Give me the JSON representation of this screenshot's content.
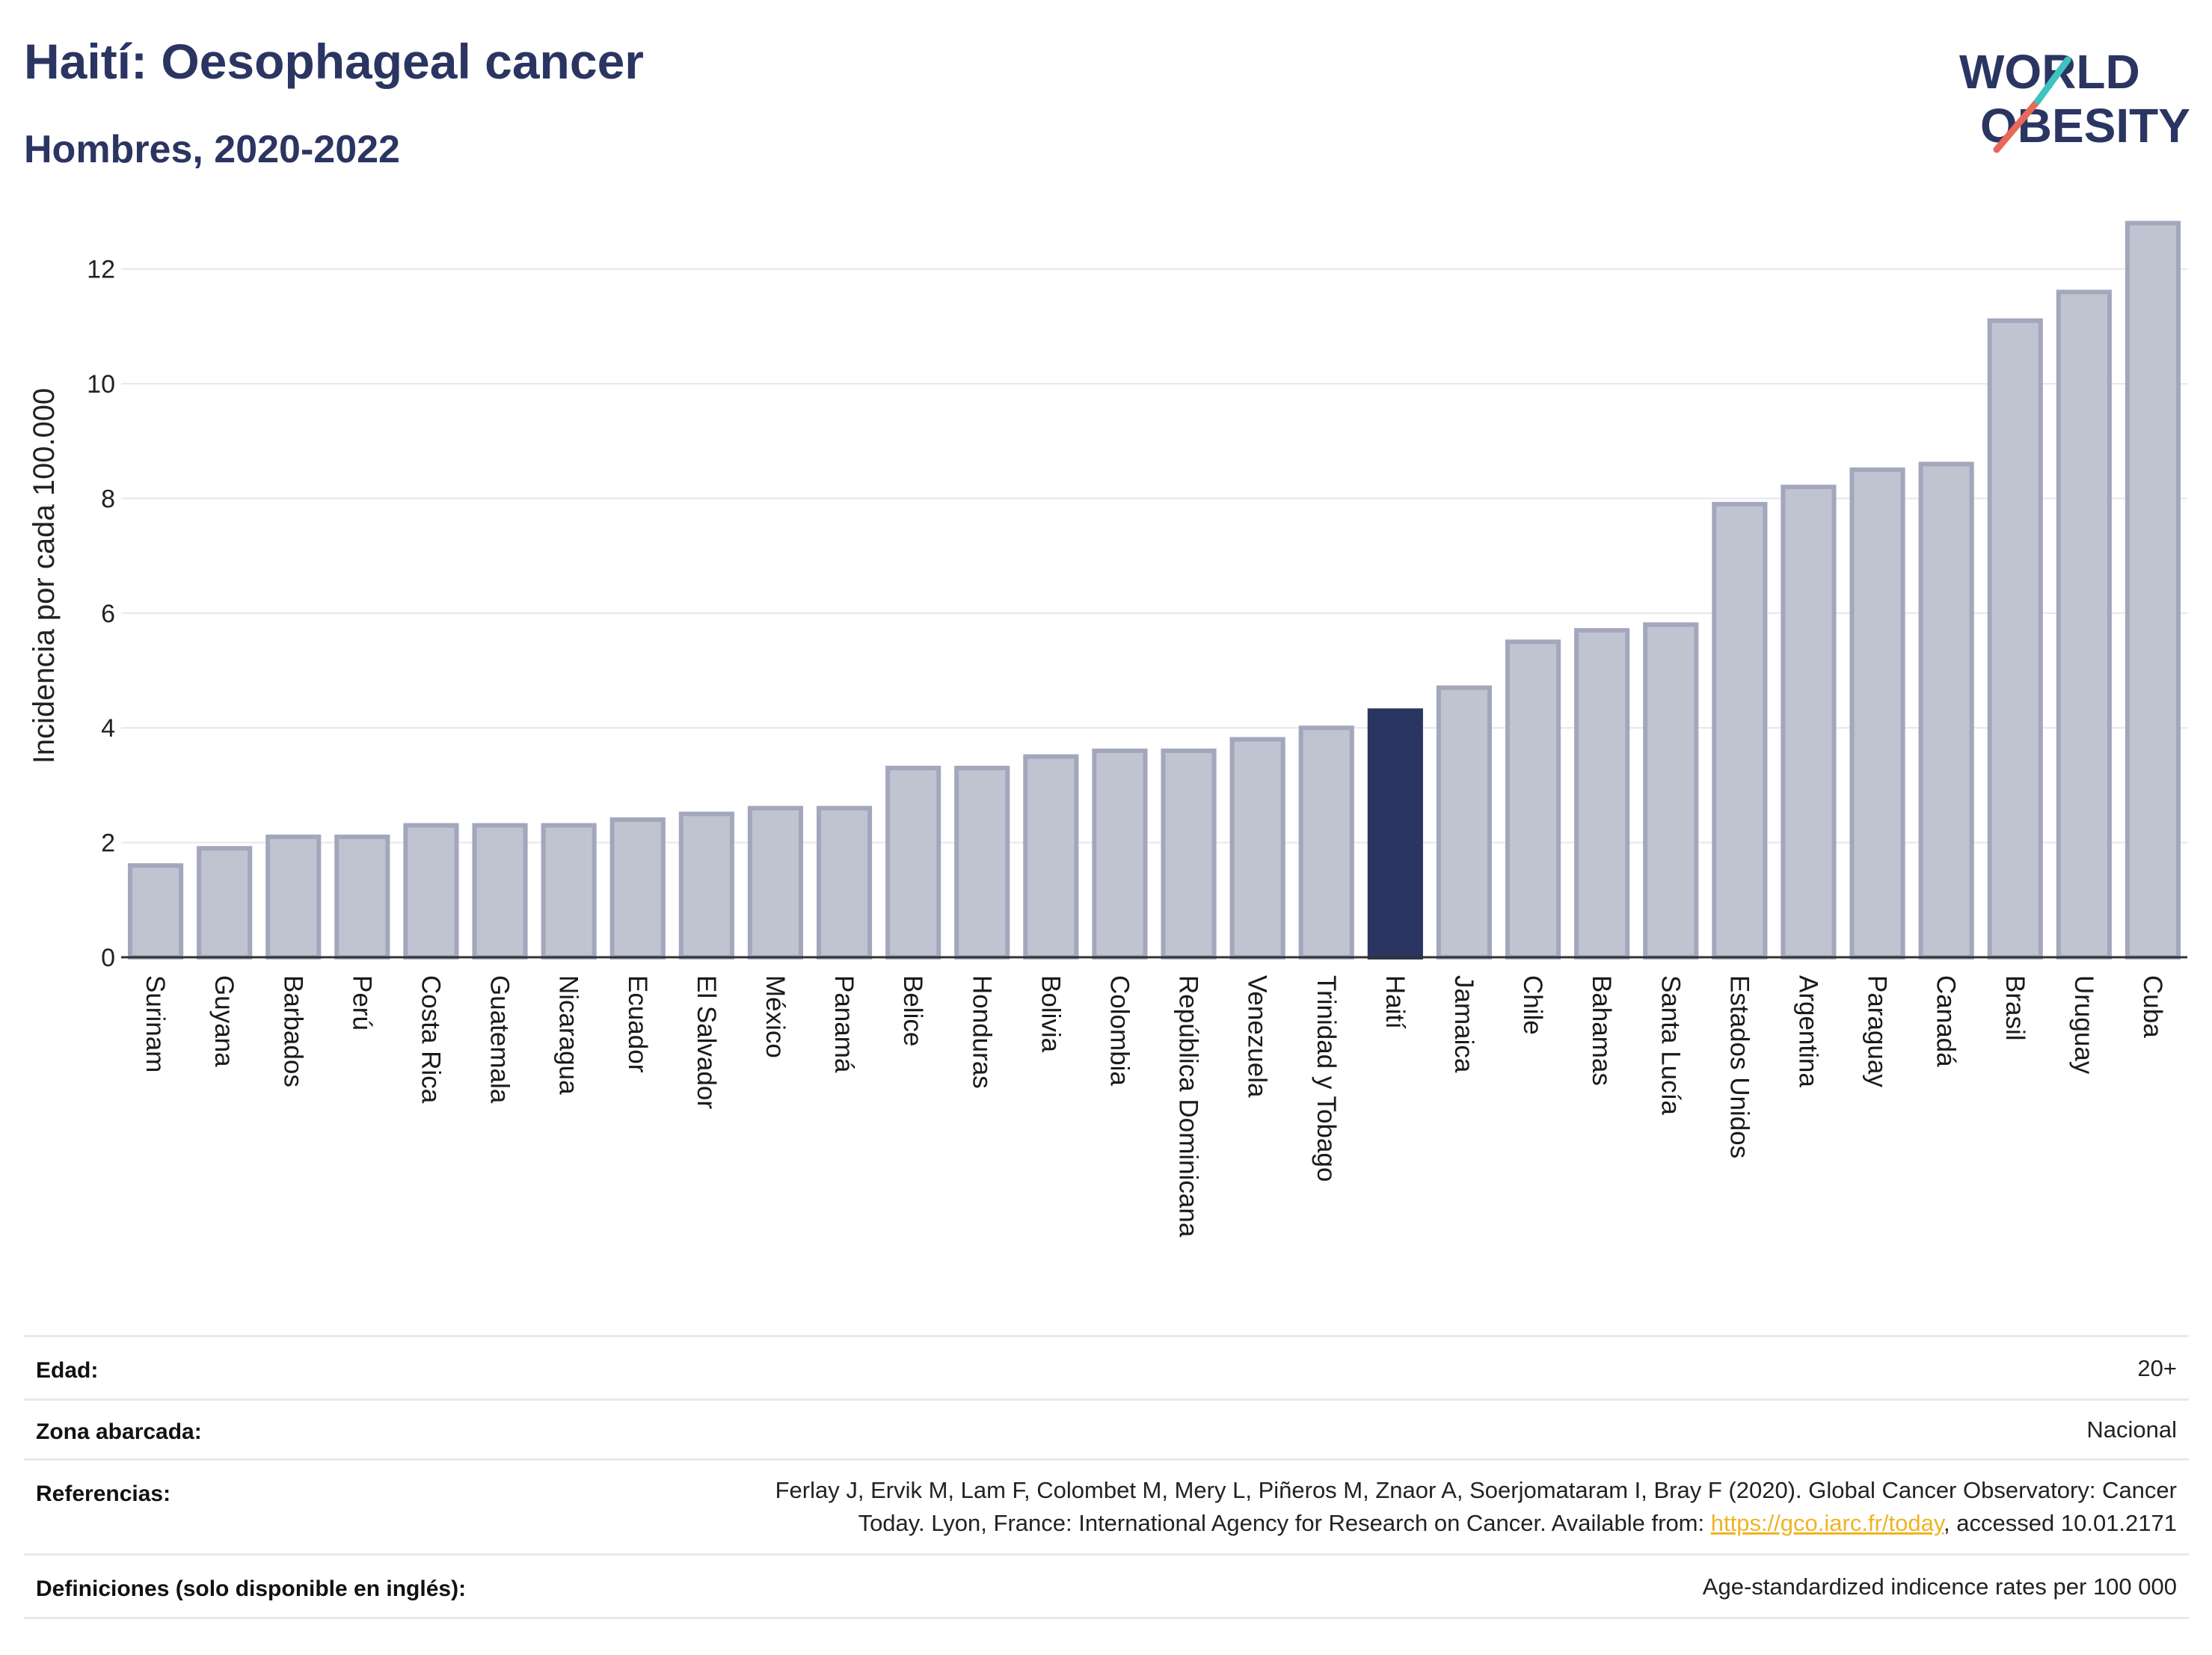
{
  "header": {
    "title": "Haití: Oesophageal cancer",
    "subtitle": "Hombres, 2020-2022",
    "logo_line1": "WORLD",
    "logo_line2": "OBESITY"
  },
  "chart_data": {
    "type": "bar",
    "title": "Haití: Oesophageal cancer",
    "subtitle": "Hombres, 2020-2022",
    "ylabel": "Incidencia por cada 100.000",
    "xlabel": "",
    "ylim": [
      0,
      13.3
    ],
    "yticks": [
      0,
      2,
      4,
      6,
      8,
      10,
      12
    ],
    "grid": true,
    "highlight": "Haití",
    "colors": {
      "bar": "#c0c3d0",
      "bar_edge": "#a3a7bd",
      "highlight": "#2b3562"
    },
    "categories": [
      "Surinam",
      "Guyana",
      "Barbados",
      "Perú",
      "Costa Rica",
      "Guatemala",
      "Nicaragua",
      "Ecuador",
      "El Salvador",
      "México",
      "Panamá",
      "Belice",
      "Honduras",
      "Bolivia",
      "Colombia",
      "República Dominicana",
      "Venezuela",
      "Trinidad y Tobago",
      "Haití",
      "Jamaica",
      "Chile",
      "Bahamas",
      "Santa Lucía",
      "Estados Unidos",
      "Argentina",
      "Paraguay",
      "Canadá",
      "Brasil",
      "Uruguay",
      "Cuba"
    ],
    "values": [
      1.6,
      1.9,
      2.1,
      2.1,
      2.3,
      2.3,
      2.3,
      2.4,
      2.5,
      2.6,
      2.6,
      3.3,
      3.3,
      3.5,
      3.6,
      3.6,
      3.8,
      4.0,
      4.3,
      4.7,
      5.5,
      5.7,
      5.8,
      7.9,
      8.2,
      8.5,
      8.6,
      11.1,
      11.6,
      12.8
    ]
  },
  "meta": {
    "edad_label": "Edad:",
    "edad_value": "20+",
    "zona_label": "Zona abarcada:",
    "zona_value": "Nacional",
    "ref_label": "Referencias:",
    "ref_line1": "Ferlay J, Ervik M, Lam F, Colombet M, Mery L, Piñeros M, Znaor A, Soerjomataram I, Bray F (2020). Global Cancer Observatory: Cancer",
    "ref_line2_pre": "Today. Lyon, France: International Agency for Research on Cancer. Available from: ",
    "ref_link": "https://gco.iarc.fr/today",
    "ref_line2_post": ", accessed 10.01.2171",
    "def_label": "Definiciones (solo disponible en inglés):",
    "def_value": "Age-standardized indicence rates per 100 000"
  }
}
